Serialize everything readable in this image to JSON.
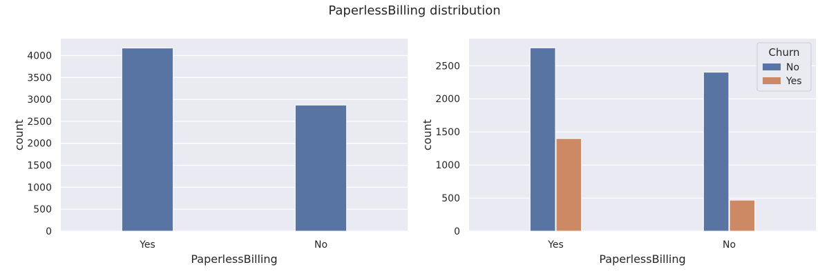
{
  "suptitle": "PaperlessBilling distribution",
  "colors": {
    "background": "#eaeaf2",
    "grid": "#ffffff",
    "no": "#5874a3",
    "yes": "#cc8963",
    "text": "#262626"
  },
  "chart_data": [
    {
      "type": "bar",
      "title": "",
      "xlabel": "PaperlessBilling",
      "ylabel": "count",
      "categories": [
        "Yes",
        "No"
      ],
      "series": [
        {
          "values": [
            4171,
            2872
          ]
        }
      ],
      "ylim": [
        0,
        4385
      ],
      "yticks": [
        0,
        500,
        1000,
        1500,
        2000,
        2500,
        3000,
        3500,
        4000
      ],
      "grid": true
    },
    {
      "type": "bar",
      "title": "",
      "xlabel": "PaperlessBilling",
      "ylabel": "count",
      "categories": [
        "Yes",
        "No"
      ],
      "series": [
        {
          "name": "No",
          "values": [
            2771,
            2403
          ]
        },
        {
          "name": "Yes",
          "values": [
            1400,
            469
          ]
        }
      ],
      "legend": {
        "title": "Churn",
        "position": "top-right"
      },
      "ylim": [
        0,
        2910
      ],
      "yticks": [
        0,
        500,
        1000,
        1500,
        2000,
        2500
      ],
      "grid": true
    }
  ]
}
